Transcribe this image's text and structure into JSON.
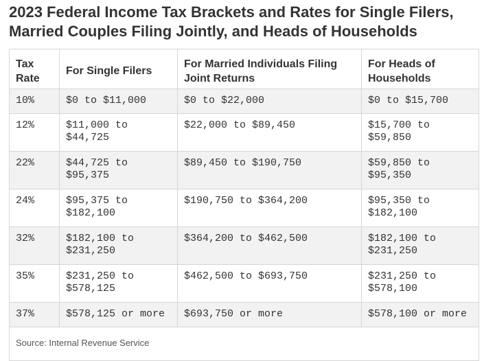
{
  "title": "2023 Federal Income Tax Brackets and Rates for Single Filers, Married Couples Filing Jointly, and Heads of Households",
  "headers": [
    "Tax Rate",
    "For Single Filers",
    "For Married Individuals Filing Joint Returns",
    "For Heads of Households"
  ],
  "rows": [
    {
      "rate": "10%",
      "single": "$0 to $11,000",
      "joint": "$0 to $22,000",
      "head": "$0 to $15,700"
    },
    {
      "rate": "12%",
      "single": "$11,000 to $44,725",
      "joint": "$22,000 to $89,450",
      "head": "$15,700 to $59,850"
    },
    {
      "rate": "22%",
      "single": "$44,725 to $95,375",
      "joint": "$89,450 to $190,750",
      "head": "$59,850 to $95,350"
    },
    {
      "rate": "24%",
      "single": "$95,375 to $182,100",
      "joint": "$190,750 to $364,200",
      "head": "$95,350 to $182,100"
    },
    {
      "rate": "32%",
      "single": "$182,100 to $231,250",
      "joint": "$364,200 to $462,500",
      "head": "$182,100 to $231,250"
    },
    {
      "rate": "35%",
      "single": "$231,250 to $578,125",
      "joint": "$462,500 to $693,750",
      "head": "$231,250 to $578,100"
    },
    {
      "rate": "37%",
      "single": "$578,125 or more",
      "joint": "$693,750 or more",
      "head": "$578,100 or more"
    }
  ],
  "source": "Source: Internal Revenue Service"
}
